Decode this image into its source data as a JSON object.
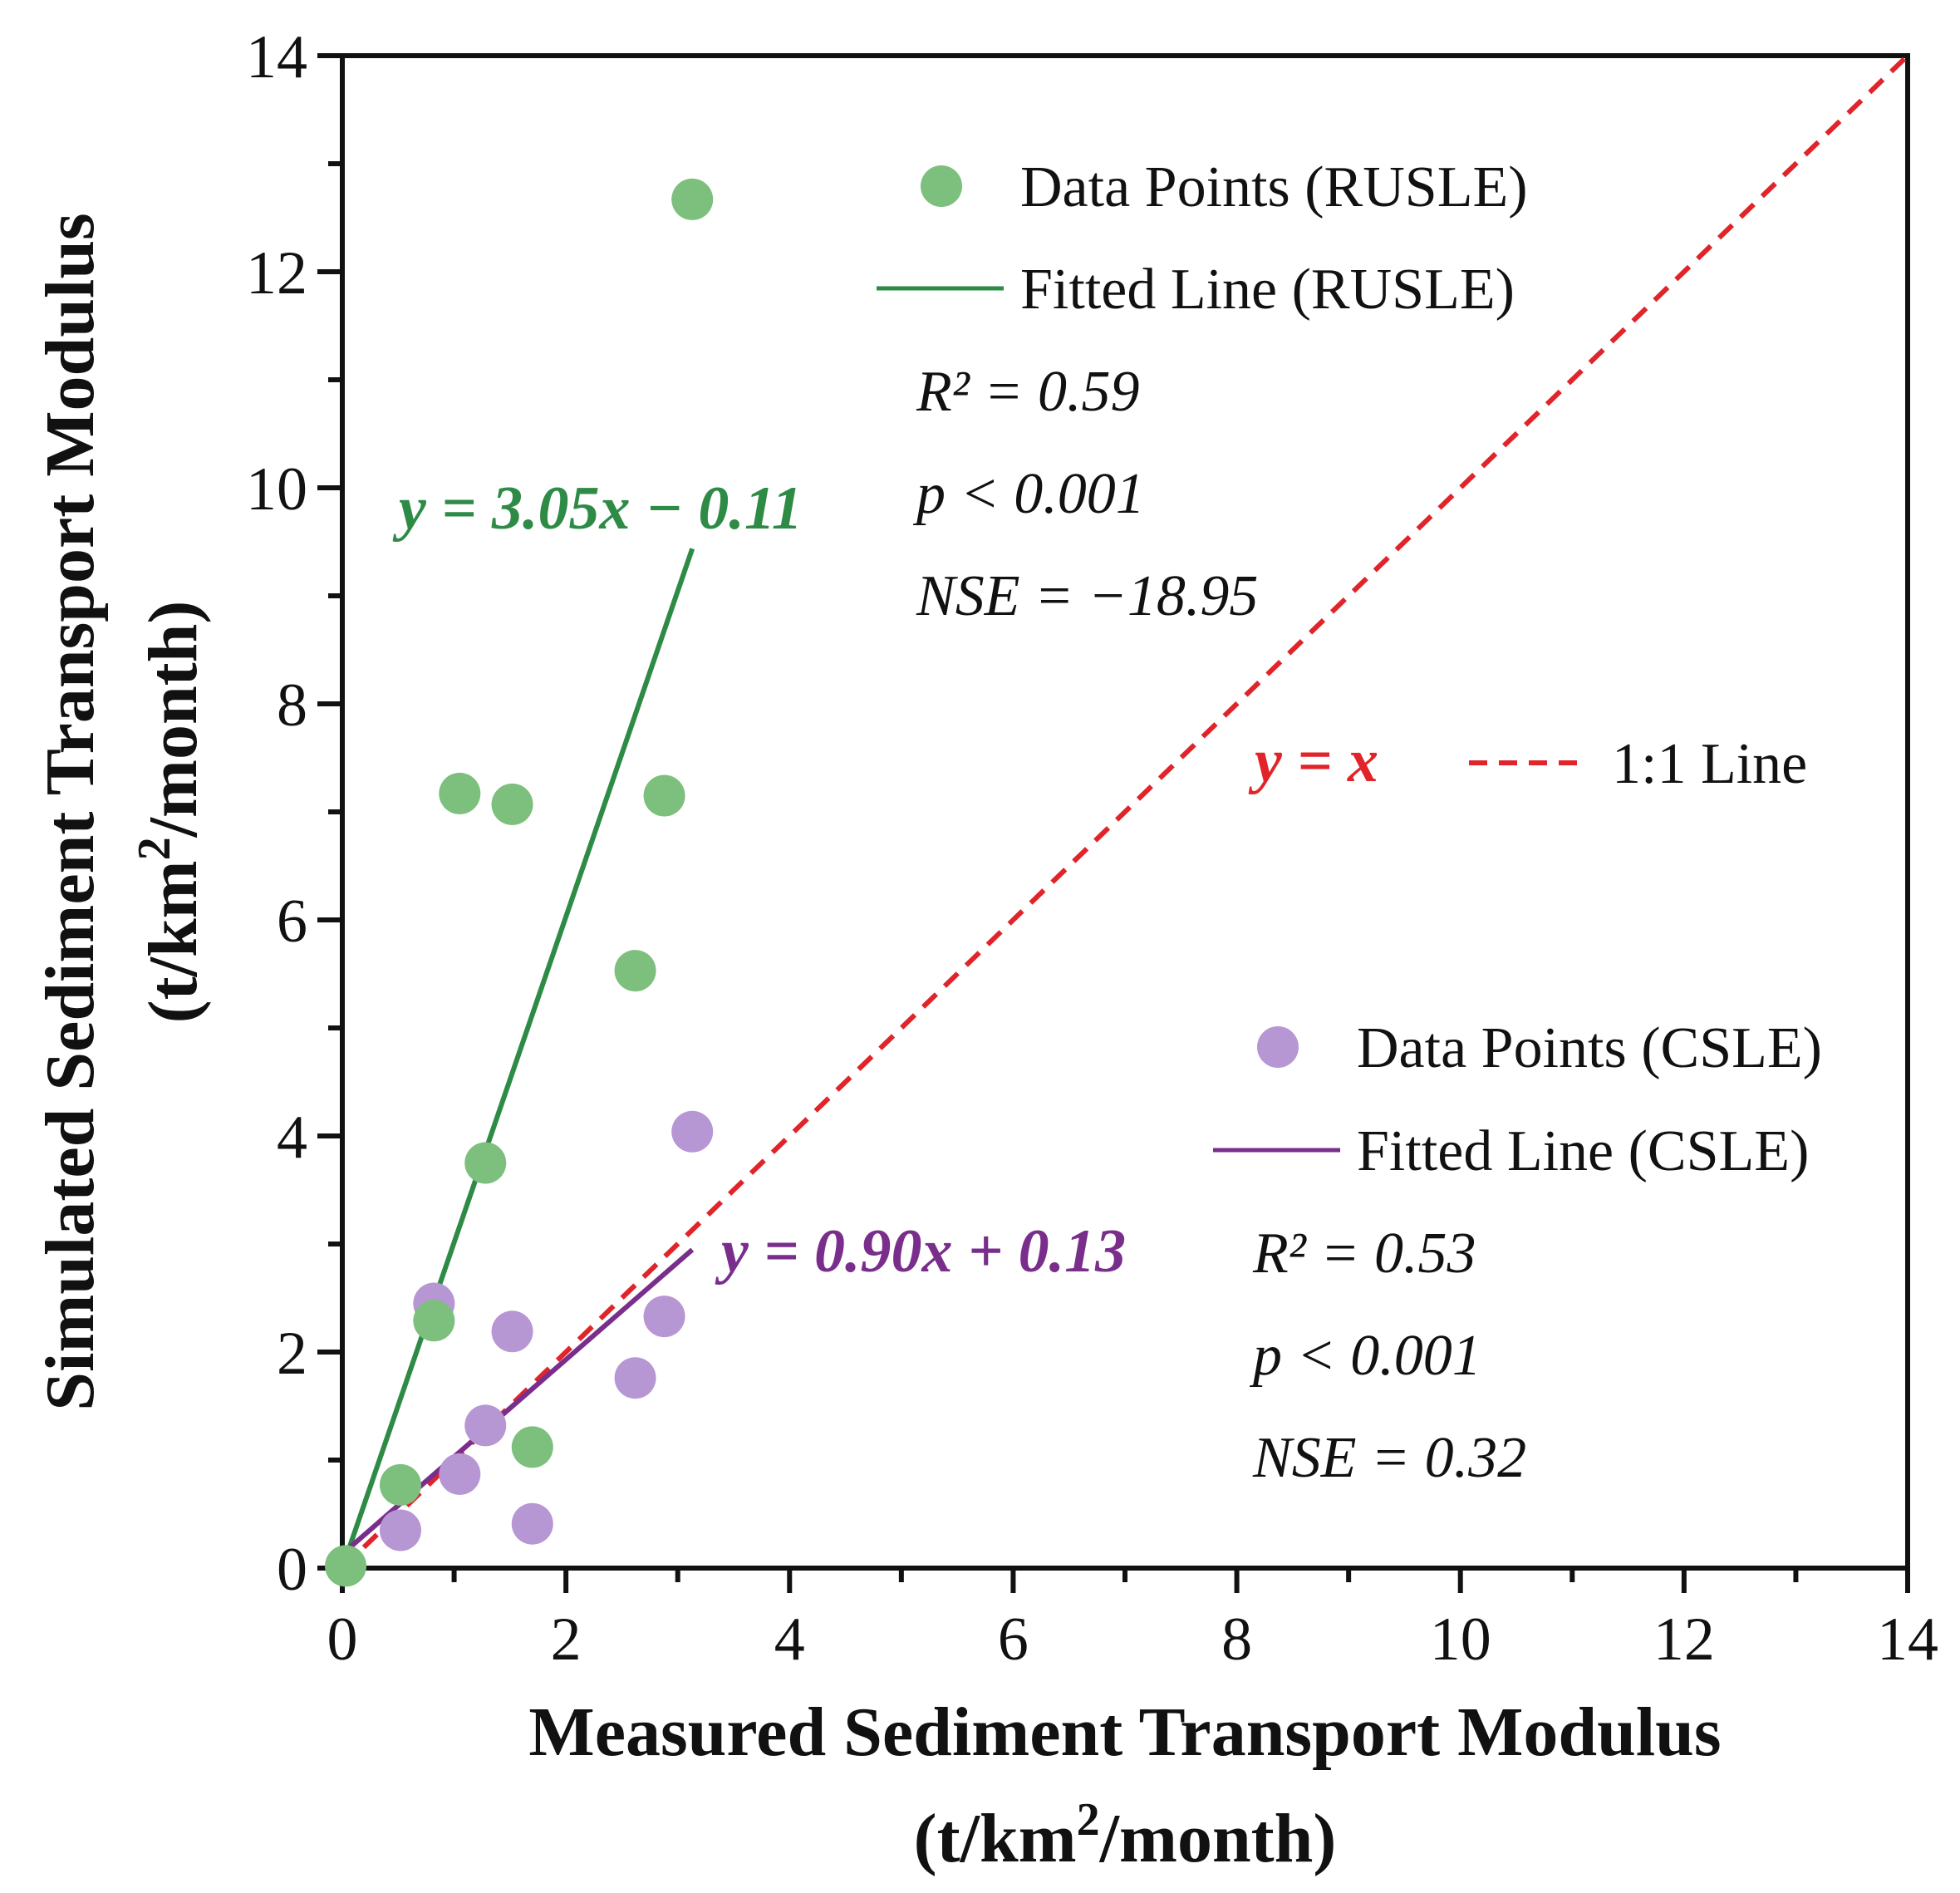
{
  "chart_data": {
    "type": "scatter",
    "xlabel": "Measured Sediment Transport Modulus",
    "xlabel_unit": {
      "pre": "(t/km",
      "sup": "2",
      "post": "/month)"
    },
    "ylabel": "Simulated Sediment Transport Modulus",
    "ylabel_unit": {
      "pre": "(t/km",
      "sup": "2",
      "post": "/month)"
    },
    "xlim": [
      0,
      14
    ],
    "ylim": [
      0,
      14
    ],
    "xticks": [
      "0",
      "2",
      "4",
      "6",
      "8",
      "10",
      "12",
      "14"
    ],
    "yticks": [
      "0",
      "2",
      "4",
      "6",
      "8",
      "10",
      "12",
      "14"
    ],
    "grid": false,
    "series": [
      {
        "name": "Data Points (RUSLE)",
        "color": "#7dbf7d",
        "points": [
          [
            0.52,
            0.77
          ],
          [
            0.82,
            2.29
          ],
          [
            1.05,
            7.17
          ],
          [
            1.28,
            3.75
          ],
          [
            1.52,
            7.07
          ],
          [
            1.7,
            1.12
          ],
          [
            2.62,
            5.53
          ],
          [
            2.88,
            7.15
          ],
          [
            3.13,
            12.67
          ],
          [
            0.03,
            0.02
          ]
        ]
      },
      {
        "name": "Data Points (CSLE)",
        "color": "#b796d4",
        "points": [
          [
            0.52,
            0.35
          ],
          [
            0.82,
            2.45
          ],
          [
            1.05,
            0.87
          ],
          [
            1.28,
            1.32
          ],
          [
            1.52,
            2.19
          ],
          [
            1.7,
            0.41
          ],
          [
            2.62,
            1.76
          ],
          [
            2.88,
            2.33
          ],
          [
            3.13,
            4.04
          ]
        ]
      }
    ],
    "lines": [
      {
        "name": "Fitted Line (RUSLE)",
        "color": "#2e8b46",
        "style": "solid",
        "x": [
          0,
          3.13
        ],
        "equation": "y = 3.05x − 0.11"
      },
      {
        "name": "Fitted Line (CSLE)",
        "color": "#7a2e8c",
        "style": "solid",
        "x": [
          0,
          3.13
        ],
        "equation": "y = 0.90x + 0.13"
      },
      {
        "name": "1:1 Line",
        "color": "#e0242a",
        "style": "dashed",
        "x": [
          0,
          14
        ],
        "equation": "y = x"
      }
    ],
    "fit_params": {
      "rusle": {
        "slope": 3.05,
        "intercept": 0.11,
        "sign": -1
      },
      "csle": {
        "slope": 0.9,
        "intercept": 0.13,
        "sign": 1
      }
    },
    "stats": {
      "rusle": {
        "r2": "R² = 0.59",
        "p": "p < 0.001",
        "nse": "NSE = −18.95"
      },
      "csle": {
        "r2": "R² = 0.53",
        "p": "p < 0.001",
        "nse": "NSE = 0.32"
      }
    },
    "legend": {
      "rusle_points": "Data Points (RUSLE)",
      "rusle_line": "Fitted Line (RUSLE)",
      "one_to_one": "1:1 Line",
      "csle_points": "Data Points (CSLE)",
      "csle_line": "Fitted Line (CSLE)"
    }
  }
}
